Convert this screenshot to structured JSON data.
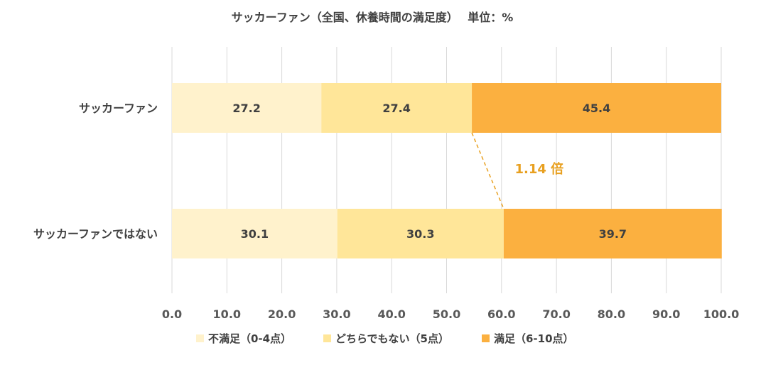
{
  "chart_data": {
    "type": "bar",
    "orientation": "horizontal",
    "stacked": true,
    "title": "サッカーファン（全国、休養時間の満足度）　 単位：%",
    "categories": [
      "サッカーファン",
      "サッカーファンではない"
    ],
    "series": [
      {
        "name": "不満足（0-4点）",
        "values": [
          27.2,
          30.1
        ],
        "color": "#FFF2CC"
      },
      {
        "name": "どちらでもない（5点）",
        "values": [
          27.4,
          30.3
        ],
        "color": "#FFE699"
      },
      {
        "name": "満足（6-10点）",
        "values": [
          45.4,
          39.7
        ],
        "color": "#FBB040"
      }
    ],
    "xlim": [
      0,
      100
    ],
    "xticks": [
      "0.0",
      "10.0",
      "20.0",
      "30.0",
      "40.0",
      "50.0",
      "60.0",
      "70.0",
      "80.0",
      "90.0",
      "100.0"
    ],
    "grid": true,
    "legend_position": "bottom",
    "annotation": {
      "text": "1.14 倍",
      "color": "#E8A020"
    }
  }
}
